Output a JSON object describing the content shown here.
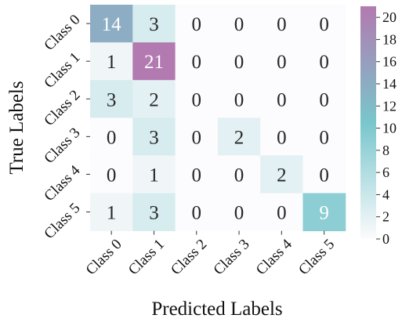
{
  "chart_data": {
    "type": "heatmap",
    "title": "",
    "xlabel": "Predicted Labels",
    "ylabel": "True Labels",
    "x_categories": [
      "Class 0",
      "Class 1",
      "Class 2",
      "Class 3",
      "Class 4",
      "Class 5"
    ],
    "y_categories": [
      "Class 0",
      "Class 1",
      "Class 2",
      "Class 3",
      "Class 4",
      "Class 5"
    ],
    "values": [
      [
        14,
        3,
        0,
        0,
        0,
        0
      ],
      [
        1,
        21,
        0,
        0,
        0,
        0
      ],
      [
        3,
        2,
        0,
        0,
        0,
        0
      ],
      [
        0,
        3,
        0,
        2,
        0,
        0
      ],
      [
        0,
        1,
        0,
        0,
        2,
        0
      ],
      [
        1,
        3,
        0,
        0,
        0,
        9
      ]
    ],
    "colorbar": {
      "min": 0,
      "max": 21,
      "ticks": [
        0,
        2,
        4,
        6,
        8,
        10,
        12,
        14,
        16,
        18,
        20
      ],
      "colors": [
        "#fcfbfd",
        "#79c6cc",
        "#b27ab0"
      ]
    },
    "annotated": true,
    "grid": false,
    "legend": "colorbar-right"
  }
}
